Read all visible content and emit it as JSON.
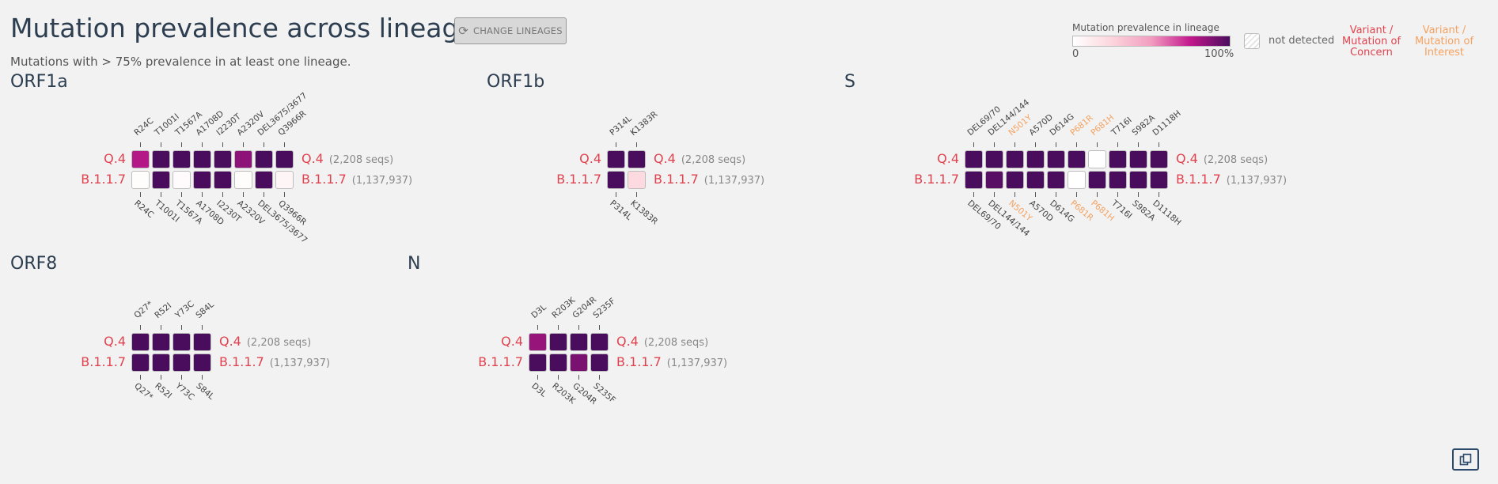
{
  "title": "Mutation prevalence across lineages",
  "subtitle": "Mutations with > 75% prevalence in at least one lineage.",
  "change_button": {
    "label": "CHANGE LINEAGES",
    "icon": "sync-icon"
  },
  "legend": {
    "title": "Mutation prevalence in lineage",
    "min_label": "0",
    "max_label": "100%",
    "not_detected": "not detected",
    "voc": "Variant /\nMutation of\nConcern",
    "voi": "Variant /\nMutation of\nInterest",
    "colors": {
      "low": "#ffffff",
      "high": "#4a0d5e",
      "voc": "#e0434f",
      "voi": "#f4a261"
    }
  },
  "lineages": [
    {
      "name": "Q.4",
      "count": "(2,208 seqs)"
    },
    {
      "name": "B.1.1.7",
      "count": "(1,137,937)"
    }
  ],
  "genes": [
    {
      "name": "ORF1a",
      "mutations": [
        "R24C",
        "T1001I",
        "T1567A",
        "A1708D",
        "I2230T",
        "A2320V",
        "DEL3675/3677",
        "Q3966R"
      ],
      "voi": [],
      "prevalence": [
        [
          0.78,
          1.0,
          1.0,
          1.0,
          1.0,
          0.86,
          1.0,
          1.0
        ],
        [
          0.02,
          1.0,
          0.03,
          1.0,
          1.0,
          0.02,
          1.0,
          0.06
        ]
      ]
    },
    {
      "name": "ORF1b",
      "mutations": [
        "P314L",
        "K1383R"
      ],
      "voi": [],
      "prevalence": [
        [
          1.0,
          1.0
        ],
        [
          1.0,
          0.22
        ]
      ]
    },
    {
      "name": "S",
      "mutations": [
        "DEL69/70",
        "DEL144/144",
        "N501Y",
        "A570D",
        "D614G",
        "P681R",
        "P681H",
        "T716I",
        "S982A",
        "D1118H"
      ],
      "voi": [
        "N501Y",
        "P681R",
        "P681H"
      ],
      "prevalence": [
        [
          1.0,
          1.0,
          1.0,
          1.0,
          1.0,
          1.0,
          0.0,
          1.0,
          1.0,
          1.0
        ],
        [
          1.0,
          0.97,
          1.0,
          1.0,
          1.0,
          0.0,
          1.0,
          1.0,
          1.0,
          1.0
        ]
      ]
    },
    {
      "name": "ORF8",
      "mutations": [
        "Q27*",
        "R52I",
        "Y73C",
        "S84L"
      ],
      "voi": [],
      "prevalence": [
        [
          1.0,
          1.0,
          1.0,
          1.0
        ],
        [
          1.0,
          1.0,
          1.0,
          1.0
        ]
      ]
    },
    {
      "name": "N",
      "mutations": [
        "D3L",
        "R203K",
        "G204R",
        "S235F"
      ],
      "voi": [],
      "prevalence": [
        [
          0.84,
          1.0,
          1.0,
          1.0
        ],
        [
          1.0,
          1.0,
          0.9,
          1.0
        ]
      ]
    }
  ]
}
